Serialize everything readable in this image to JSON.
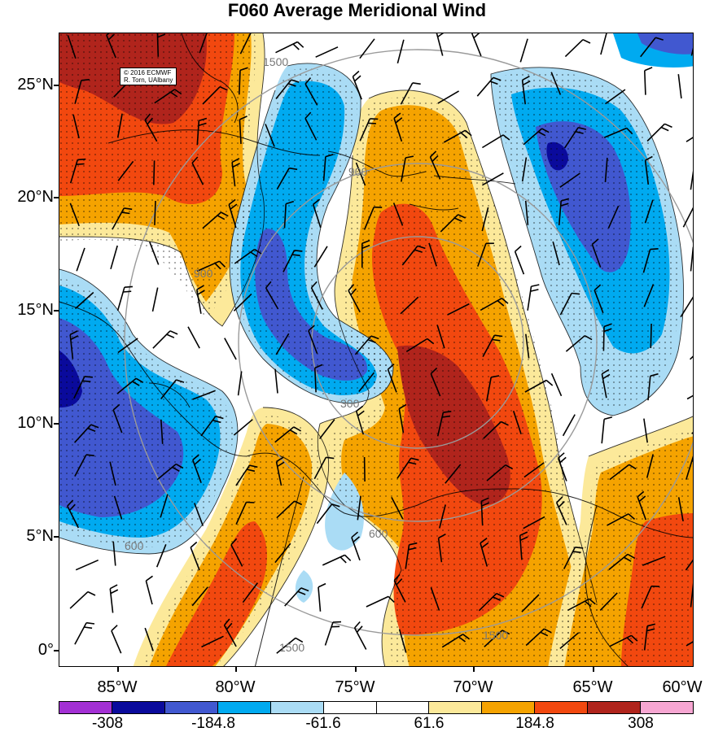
{
  "title": "F060 Average Meridional Wind",
  "credit": {
    "line1": "© 2016 ECMWF",
    "line2": "R. Torn, UAlbany"
  },
  "y_axis": {
    "ticks": [
      {
        "value": 25,
        "label": "25°N"
      },
      {
        "value": 20,
        "label": "20°N"
      },
      {
        "value": 15,
        "label": "15°N"
      },
      {
        "value": 10,
        "label": "10°N"
      },
      {
        "value": 5,
        "label": "5°N"
      },
      {
        "value": 0,
        "label": "0°"
      }
    ]
  },
  "x_axis": {
    "ticks": [
      {
        "value": -85,
        "label": "85°W"
      },
      {
        "value": -80,
        "label": "80°W"
      },
      {
        "value": -75,
        "label": "75°W"
      },
      {
        "value": -70,
        "label": "70°W"
      },
      {
        "value": -65,
        "label": "65°W"
      },
      {
        "value": -60,
        "label": "60°W"
      }
    ]
  },
  "range_rings": {
    "labels": [
      "900",
      "1500",
      "600",
      "300",
      "900",
      "1500",
      "600",
      "1500"
    ]
  },
  "colorbar": {
    "colors": [
      "#a330d4",
      "#0a0a9c",
      "#4158d0",
      "#00aaf0",
      "#aadcf5",
      "#ffffff",
      "#ffffff",
      "#fce99a",
      "#f5a300",
      "#f2480f",
      "#b0241c",
      "#f7a6d2"
    ],
    "labels": [
      {
        "value": -308,
        "text": "-308"
      },
      {
        "value": -184.8,
        "text": "-184.8"
      },
      {
        "value": -61.6,
        "text": "-61.6"
      },
      {
        "value": 61.6,
        "text": "61.6"
      },
      {
        "value": 184.8,
        "text": "184.8"
      },
      {
        "value": 308,
        "text": "308"
      }
    ]
  }
}
